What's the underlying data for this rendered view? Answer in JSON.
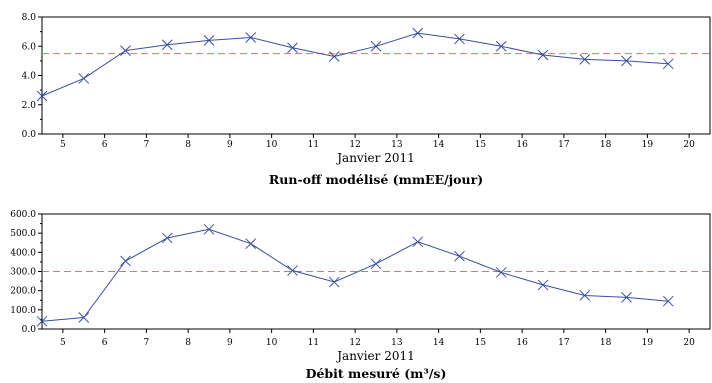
{
  "chart_data": [
    {
      "type": "line",
      "title": "Run-off modélisé (mmEE/jour)",
      "xlabel": "Janvier 2011",
      "ylabel": "",
      "x_ticks": [
        "5",
        "6",
        "7",
        "8",
        "9",
        "10",
        "11",
        "12",
        "13",
        "14",
        "15",
        "16",
        "17",
        "18",
        "19",
        "20"
      ],
      "x_range": [
        4.5,
        20.5
      ],
      "ylim": [
        0,
        8
      ],
      "y_ticks": [
        0,
        2,
        4,
        6,
        8
      ],
      "y_tick_labels": [
        "0.0",
        "2.0",
        "4.0",
        "6.0",
        "8.0"
      ],
      "grid": false,
      "reference_line": 5.5,
      "series": [
        {
          "x": [
            4.5,
            5.5,
            6.5,
            7.5,
            8.5,
            9.5,
            10.5,
            11.5,
            12.5,
            13.5,
            14.5,
            15.5,
            16.5,
            17.5,
            18.5,
            19.5
          ],
          "values": [
            2.6,
            3.8,
            5.7,
            6.1,
            6.4,
            6.6,
            5.9,
            5.3,
            6.0,
            6.9,
            6.5,
            6.0,
            5.4,
            5.1,
            5.0,
            4.8
          ]
        }
      ],
      "colors": {
        "line": "#3a4f9c",
        "reference": "#e8706a"
      }
    },
    {
      "type": "line",
      "title": "Débit mesuré (m³/s)",
      "xlabel": "Janvier 2011",
      "ylabel": "",
      "x_ticks": [
        "5",
        "6",
        "7",
        "8",
        "9",
        "10",
        "11",
        "12",
        "13",
        "14",
        "15",
        "16",
        "17",
        "18",
        "19",
        "20"
      ],
      "x_range": [
        4.5,
        20.5
      ],
      "ylim": [
        0,
        600
      ],
      "y_ticks": [
        0,
        100,
        200,
        300,
        400,
        500,
        600
      ],
      "y_tick_labels": [
        "0.0",
        "100.0",
        "200.0",
        "300.0",
        "400.0",
        "500.0",
        "600.0"
      ],
      "grid": false,
      "reference_line": 300,
      "series": [
        {
          "x": [
            4.5,
            5.5,
            6.5,
            7.5,
            8.5,
            9.5,
            10.5,
            11.5,
            12.5,
            13.5,
            14.5,
            15.5,
            16.5,
            17.5,
            18.5,
            19.5
          ],
          "values": [
            40,
            60,
            355,
            475,
            520,
            445,
            305,
            245,
            340,
            455,
            380,
            295,
            230,
            175,
            165,
            145
          ]
        }
      ],
      "colors": {
        "line": "#3a4f9c",
        "reference": "#e8706a"
      }
    }
  ]
}
